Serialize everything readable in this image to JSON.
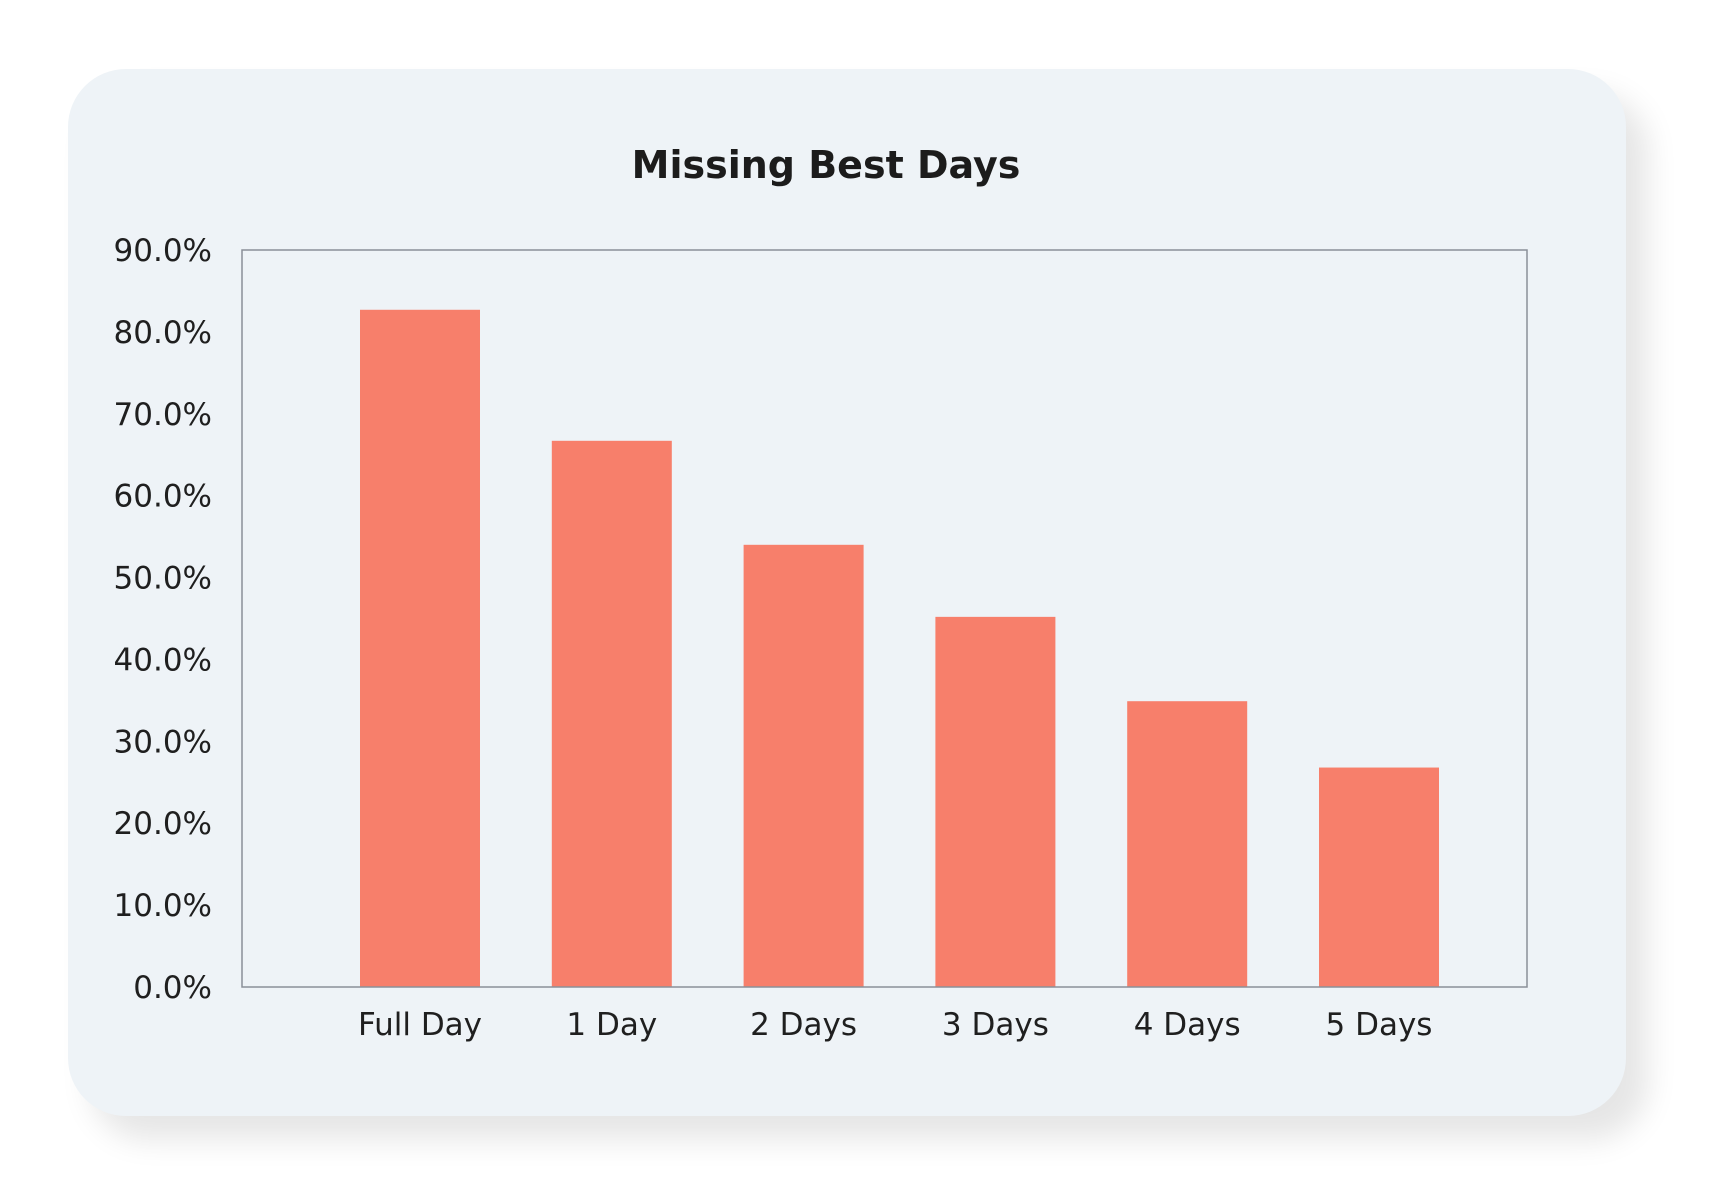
{
  "chart_data": {
    "type": "bar",
    "title": "Missing Best Days",
    "xlabel": "",
    "ylabel": "",
    "categories": [
      "Full Day",
      "1 Day",
      "2 Days",
      "3 Days",
      "4 Days",
      "5 Days"
    ],
    "values": [
      82.7,
      66.7,
      54.0,
      45.2,
      34.9,
      26.8
    ],
    "ylim": [
      0,
      90
    ],
    "yticks": [
      "0.0%",
      "10.0%",
      "20.0%",
      "30.0%",
      "40.0%",
      "50.0%",
      "60.0%",
      "70.0%",
      "80.0%",
      "90.0%"
    ],
    "grid": false,
    "legend": "none",
    "bar_color": "#f77f6b",
    "background_color": "#eef3f7",
    "axis_color": "#8a9098"
  }
}
